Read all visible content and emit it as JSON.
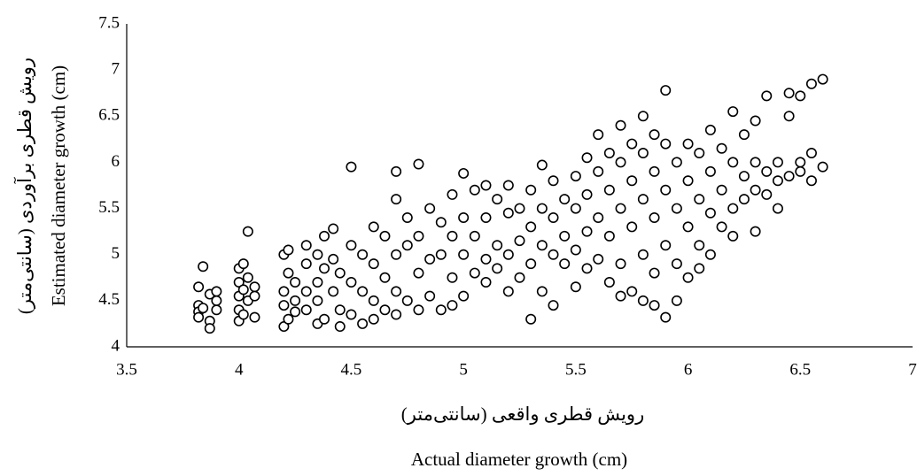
{
  "chart_data": {
    "type": "scatter",
    "xlabel": [
      "رویش قطری واقعی (سانتی‌متر)",
      "Actual diameter growth (cm)"
    ],
    "ylabel": [
      "رویش قطری برآوردی (سانتی‌متر)",
      "Estimated diameter growth (cm)"
    ],
    "xlim": [
      3.5,
      7
    ],
    "xticks": [
      3.5,
      4,
      4.5,
      5,
      5.5,
      6,
      6.5,
      7
    ],
    "ylim": [
      4,
      7.5
    ],
    "yticks": [
      4,
      4.5,
      5,
      5.5,
      6,
      6.5,
      7,
      7.5
    ],
    "grid": false,
    "marker_fill": "#ffffff",
    "marker_edge": "#000000",
    "x": [
      3.82,
      3.82,
      3.82,
      3.82,
      3.84,
      3.84,
      3.87,
      3.87,
      3.87,
      3.9,
      3.9,
      3.9,
      4.0,
      4.0,
      4.0,
      4.0,
      4.0,
      4.02,
      4.02,
      4.02,
      4.04,
      4.04,
      4.04,
      4.07,
      4.07,
      4.07,
      4.2,
      4.2,
      4.2,
      4.2,
      4.22,
      4.22,
      4.22,
      4.25,
      4.25,
      4.25,
      4.3,
      4.3,
      4.3,
      4.3,
      4.35,
      4.35,
      4.35,
      4.35,
      4.38,
      4.38,
      4.38,
      4.42,
      4.42,
      4.42,
      4.45,
      4.45,
      4.45,
      4.5,
      4.5,
      4.5,
      4.5,
      4.55,
      4.55,
      4.55,
      4.6,
      4.6,
      4.6,
      4.6,
      4.65,
      4.65,
      4.65,
      4.7,
      4.7,
      4.7,
      4.7,
      4.7,
      4.75,
      4.75,
      4.75,
      4.8,
      4.8,
      4.8,
      4.8,
      4.85,
      4.85,
      4.85,
      4.9,
      4.9,
      4.9,
      4.95,
      4.95,
      4.95,
      4.95,
      5.0,
      5.0,
      5.0,
      5.0,
      5.05,
      5.05,
      5.05,
      5.1,
      5.1,
      5.1,
      5.1,
      5.15,
      5.15,
      5.15,
      5.2,
      5.2,
      5.2,
      5.2,
      5.25,
      5.25,
      5.25,
      5.3,
      5.3,
      5.3,
      5.3,
      5.35,
      5.35,
      5.35,
      5.35,
      5.4,
      5.4,
      5.4,
      5.4,
      5.45,
      5.45,
      5.45,
      5.5,
      5.5,
      5.5,
      5.5,
      5.55,
      5.55,
      5.55,
      5.55,
      5.6,
      5.6,
      5.6,
      5.6,
      5.65,
      5.65,
      5.65,
      5.65,
      5.7,
      5.7,
      5.7,
      5.7,
      5.7,
      5.75,
      5.75,
      5.75,
      5.75,
      5.8,
      5.8,
      5.8,
      5.8,
      5.8,
      5.85,
      5.85,
      5.85,
      5.85,
      5.85,
      5.9,
      5.9,
      5.9,
      5.9,
      5.9,
      5.95,
      5.95,
      5.95,
      5.95,
      6.0,
      6.0,
      6.0,
      6.0,
      6.05,
      6.05,
      6.05,
      6.05,
      6.1,
      6.1,
      6.1,
      6.1,
      6.15,
      6.15,
      6.15,
      6.2,
      6.2,
      6.2,
      6.2,
      6.25,
      6.25,
      6.25,
      6.3,
      6.3,
      6.3,
      6.3,
      6.35,
      6.35,
      6.35,
      6.4,
      6.4,
      6.4,
      6.45,
      6.45,
      6.45,
      6.5,
      6.5,
      6.5,
      6.55,
      6.55,
      6.55,
      6.6,
      6.6
    ],
    "values": [
      4.65,
      4.45,
      4.38,
      4.32,
      4.87,
      4.42,
      4.57,
      4.28,
      4.2,
      4.6,
      4.4,
      4.5,
      4.85,
      4.7,
      4.55,
      4.4,
      4.28,
      4.9,
      4.62,
      4.35,
      5.25,
      4.5,
      4.75,
      4.65,
      4.32,
      4.55,
      5.0,
      4.6,
      4.22,
      4.45,
      5.05,
      4.8,
      4.3,
      4.7,
      4.5,
      4.38,
      5.1,
      4.9,
      4.6,
      4.4,
      5.0,
      4.7,
      4.25,
      4.5,
      5.2,
      4.85,
      4.3,
      5.28,
      4.95,
      4.6,
      4.8,
      4.4,
      4.22,
      5.95,
      5.1,
      4.7,
      4.35,
      5.0,
      4.6,
      4.25,
      5.3,
      4.9,
      4.5,
      4.3,
      5.2,
      4.75,
      4.4,
      5.9,
      5.6,
      5.0,
      4.6,
      4.35,
      5.4,
      5.1,
      4.5,
      5.98,
      5.2,
      4.8,
      4.4,
      5.5,
      4.95,
      4.55,
      5.35,
      5.0,
      4.4,
      5.65,
      5.2,
      4.75,
      4.45,
      5.88,
      5.4,
      5.0,
      4.55,
      5.7,
      5.2,
      4.8,
      5.75,
      5.4,
      4.95,
      4.7,
      5.6,
      5.1,
      4.85,
      5.75,
      5.45,
      5.0,
      4.6,
      5.5,
      5.15,
      4.75,
      5.7,
      5.3,
      4.9,
      4.3,
      5.97,
      5.5,
      5.1,
      4.6,
      5.8,
      5.4,
      5.0,
      4.45,
      5.6,
      5.2,
      4.9,
      5.85,
      5.5,
      5.05,
      4.65,
      6.05,
      5.65,
      5.25,
      4.85,
      6.3,
      5.9,
      5.4,
      4.95,
      6.1,
      5.7,
      5.2,
      4.7,
      6.4,
      6.0,
      5.5,
      4.9,
      4.55,
      6.2,
      5.8,
      5.3,
      4.6,
      6.5,
      6.1,
      5.6,
      5.0,
      4.5,
      6.3,
      5.9,
      5.4,
      4.8,
      4.45,
      6.78,
      6.2,
      5.7,
      5.1,
      4.32,
      6.0,
      5.5,
      4.9,
      4.5,
      6.2,
      5.8,
      5.3,
      4.75,
      6.1,
      5.6,
      5.1,
      4.85,
      6.35,
      5.9,
      5.45,
      5.0,
      6.15,
      5.7,
      5.3,
      6.55,
      6.0,
      5.5,
      5.2,
      6.3,
      5.85,
      5.6,
      6.45,
      6.0,
      5.7,
      5.25,
      6.72,
      5.9,
      5.65,
      6.0,
      5.8,
      5.5,
      6.75,
      6.5,
      5.85,
      6.72,
      6.0,
      5.9,
      6.85,
      6.1,
      5.8,
      6.9,
      5.95
    ]
  }
}
